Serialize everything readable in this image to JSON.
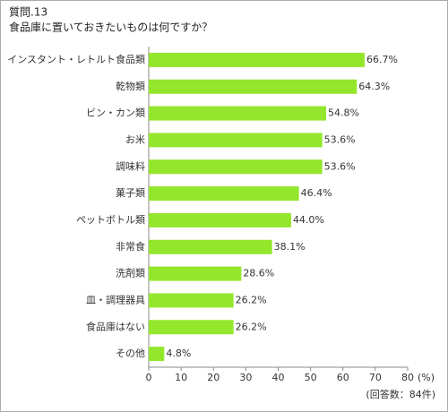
{
  "chart_data": {
    "type": "hbar",
    "title": "質問.13",
    "subtitle": "食品庫に置いておきたいものは何ですか？",
    "categories": [
      "インスタント・レトルト食品類",
      "乾物類",
      "ビン・カン類",
      "お米",
      "調味料",
      "菓子類",
      "ペットボトル類",
      "非常食",
      "洗剤類",
      "皿・調理器具",
      "食品庫はない",
      "その他"
    ],
    "values": [
      66.7,
      64.3,
      54.8,
      53.6,
      53.6,
      46.4,
      44.0,
      38.1,
      28.6,
      26.2,
      26.2,
      4.8
    ],
    "value_labels": [
      "66.7%",
      "64.3%",
      "54.8%",
      "53.6%",
      "53.6%",
      "46.4%",
      "44.0%",
      "38.1%",
      "28.6%",
      "26.2%",
      "26.2%",
      "4.8%"
    ],
    "color": "#93e62c",
    "xlim": [
      0,
      80
    ],
    "xticks": [
      0,
      10,
      20,
      30,
      40,
      50,
      60,
      70,
      80
    ],
    "x_label": "(%)",
    "note": "(回答数：84件)"
  }
}
